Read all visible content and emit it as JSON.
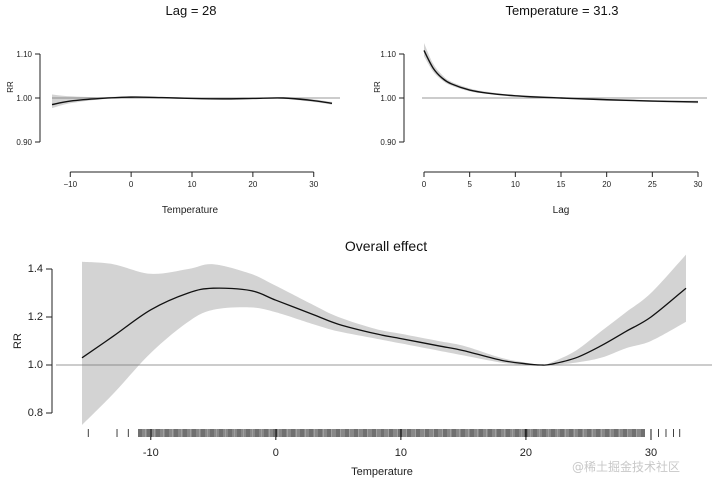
{
  "chart_data": [
    {
      "id": "lag",
      "type": "line",
      "title": "Lag = 28",
      "xlabel": "Temperature",
      "ylabel": "RR",
      "xlim": [
        -13,
        33
      ],
      "ylim": [
        0.9,
        1.1
      ],
      "xticks": [
        -10,
        0,
        10,
        20,
        30
      ],
      "xtick_labels": [
        "−10",
        "0",
        "10",
        "20",
        "30"
      ],
      "yticks": [
        0.9,
        1.0,
        1.1
      ],
      "ytick_labels": [
        "0.90",
        "1.00",
        "1.10"
      ],
      "reference": 1.0,
      "x": [
        -13,
        -10,
        -5,
        0,
        5,
        10,
        15,
        20,
        25,
        30,
        33
      ],
      "y": [
        0.985,
        0.993,
        0.999,
        1.002,
        1.001,
        0.999,
        0.998,
        0.999,
        1.0,
        0.994,
        0.988
      ],
      "lower": [
        0.977,
        0.988,
        0.997,
        1.0,
        0.999,
        0.998,
        0.997,
        0.998,
        0.998,
        0.991,
        0.985
      ],
      "upper": [
        1.008,
        1.004,
        1.002,
        1.004,
        1.002,
        1.0,
        0.999,
        1.0,
        1.002,
        0.997,
        0.991
      ]
    },
    {
      "id": "temp",
      "type": "line",
      "title": "Temperature = 31.3",
      "xlabel": "Lag",
      "ylabel": "RR",
      "xlim": [
        0,
        30
      ],
      "ylim": [
        0.9,
        1.1
      ],
      "xticks": [
        0,
        5,
        10,
        15,
        20,
        25,
        30
      ],
      "xtick_labels": [
        "0",
        "5",
        "10",
        "15",
        "20",
        "25",
        "30"
      ],
      "yticks": [
        0.9,
        1.0,
        1.1
      ],
      "ytick_labels": [
        "0.90",
        "1.00",
        "1.10"
      ],
      "reference": 1.0,
      "x": [
        0,
        1,
        2,
        3,
        5,
        7,
        10,
        15,
        20,
        25,
        30
      ],
      "y": [
        1.108,
        1.068,
        1.045,
        1.032,
        1.018,
        1.011,
        1.005,
        1.0,
        0.996,
        0.993,
        0.991
      ],
      "lower": [
        1.095,
        1.06,
        1.04,
        1.028,
        1.015,
        1.009,
        1.003,
        0.998,
        0.994,
        0.991,
        0.988
      ],
      "upper": [
        1.125,
        1.078,
        1.052,
        1.037,
        1.022,
        1.014,
        1.007,
        1.002,
        0.998,
        0.995,
        0.994
      ]
    },
    {
      "id": "overall",
      "type": "line",
      "title": "Overall effect",
      "xlabel": "Temperature",
      "ylabel": "RR",
      "xlim": [
        -15.5,
        32.8
      ],
      "ylim": [
        0.78,
        1.42
      ],
      "xticks": [
        -10,
        0,
        10,
        20,
        30
      ],
      "xtick_labels": [
        "-10",
        "0",
        "10",
        "20",
        "30"
      ],
      "yticks": [
        0.8,
        1.0,
        1.2,
        1.4
      ],
      "ytick_labels": [
        "0.8",
        "1.0",
        "1.2",
        "1.4"
      ],
      "reference": 1.0,
      "x": [
        -15.5,
        -13,
        -10,
        -7,
        -5,
        -2,
        0,
        3,
        5,
        8,
        10,
        13,
        15,
        18,
        20,
        21.2,
        22,
        24,
        26,
        28,
        30,
        32.8
      ],
      "y": [
        1.03,
        1.12,
        1.23,
        1.3,
        1.32,
        1.31,
        1.27,
        1.21,
        1.17,
        1.13,
        1.11,
        1.08,
        1.06,
        1.02,
        1.005,
        1.0,
        1.003,
        1.03,
        1.08,
        1.14,
        1.2,
        1.32
      ],
      "lower": [
        0.75,
        0.88,
        1.05,
        1.18,
        1.23,
        1.24,
        1.22,
        1.17,
        1.14,
        1.11,
        1.09,
        1.06,
        1.04,
        1.01,
        1.0,
        1.0,
        1.0,
        1.01,
        1.03,
        1.07,
        1.1,
        1.18
      ],
      "upper": [
        1.43,
        1.42,
        1.38,
        1.4,
        1.42,
        1.38,
        1.33,
        1.25,
        1.2,
        1.15,
        1.13,
        1.1,
        1.08,
        1.03,
        1.01,
        1.0,
        1.01,
        1.06,
        1.14,
        1.22,
        1.3,
        1.46
      ],
      "rug_dense_range": [
        -11,
        29.5
      ],
      "rug_sparse": [
        -15.0,
        -12.7,
        -11.8,
        30.6,
        31.2,
        31.8,
        32.3
      ]
    }
  ],
  "watermark": "@稀土掘金技术社区"
}
